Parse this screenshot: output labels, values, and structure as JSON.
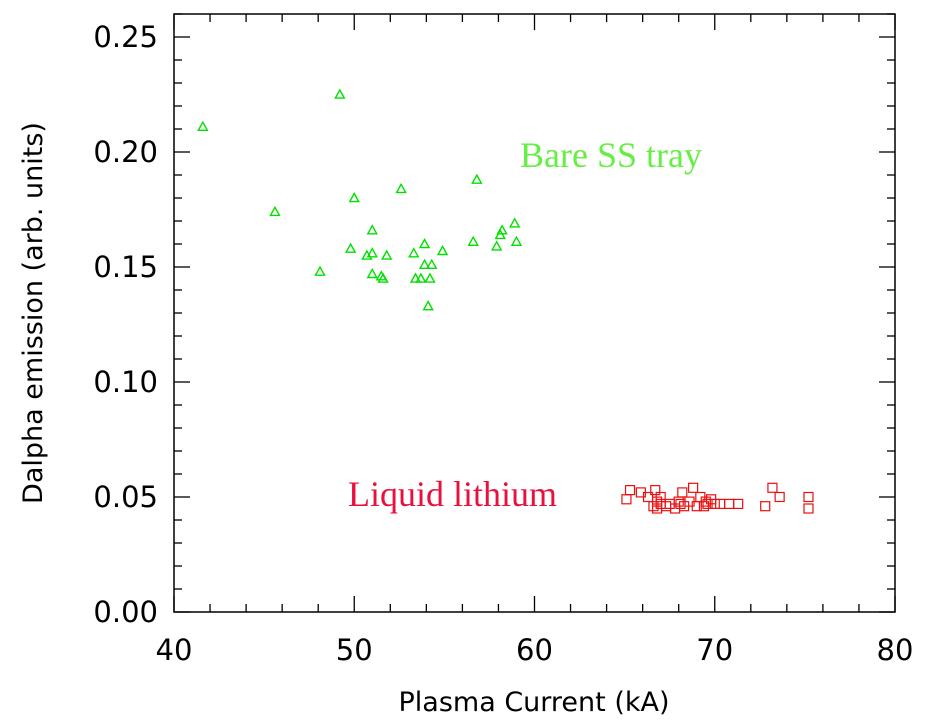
{
  "chart_data": {
    "type": "scatter",
    "title": "",
    "xlabel": "Plasma Current (kA)",
    "ylabel": "Dalpha emission (arb. units)",
    "xlim": [
      40,
      80
    ],
    "ylim": [
      0,
      0.26
    ],
    "xticks": [
      "40",
      "50",
      "60",
      "70",
      "80"
    ],
    "yticks": [
      "0.00",
      "0.05",
      "0.10",
      "0.15",
      "0.20",
      "0.25"
    ],
    "grid": false,
    "series": [
      {
        "name": "Bare SS tray",
        "color": "#00e000",
        "marker": "triangle",
        "points": [
          [
            41.6,
            0.211
          ],
          [
            45.6,
            0.174
          ],
          [
            48.1,
            0.148
          ],
          [
            49.2,
            0.225
          ],
          [
            49.8,
            0.158
          ],
          [
            50.0,
            0.18
          ],
          [
            50.7,
            0.155
          ],
          [
            51.0,
            0.166
          ],
          [
            51.0,
            0.156
          ],
          [
            51.0,
            0.147
          ],
          [
            51.5,
            0.146
          ],
          [
            51.6,
            0.145
          ],
          [
            51.8,
            0.155
          ],
          [
            52.6,
            0.184
          ],
          [
            53.3,
            0.156
          ],
          [
            53.4,
            0.145
          ],
          [
            53.7,
            0.145
          ],
          [
            53.9,
            0.16
          ],
          [
            53.9,
            0.151
          ],
          [
            54.1,
            0.133
          ],
          [
            54.2,
            0.145
          ],
          [
            54.3,
            0.151
          ],
          [
            54.9,
            0.157
          ],
          [
            56.6,
            0.161
          ],
          [
            56.8,
            0.188
          ],
          [
            57.9,
            0.159
          ],
          [
            58.1,
            0.164
          ],
          [
            58.2,
            0.166
          ],
          [
            58.9,
            0.169
          ],
          [
            59.0,
            0.161
          ]
        ]
      },
      {
        "name": "Liquid lithium",
        "color": "#e81010",
        "marker": "square",
        "points": [
          [
            65.1,
            0.049
          ],
          [
            65.3,
            0.053
          ],
          [
            65.9,
            0.052
          ],
          [
            66.3,
            0.05
          ],
          [
            66.6,
            0.046
          ],
          [
            66.7,
            0.053
          ],
          [
            66.8,
            0.045
          ],
          [
            66.8,
            0.048
          ],
          [
            67.0,
            0.05
          ],
          [
            67.0,
            0.047
          ],
          [
            67.3,
            0.046
          ],
          [
            67.5,
            0.047
          ],
          [
            67.8,
            0.045
          ],
          [
            68.0,
            0.048
          ],
          [
            68.1,
            0.047
          ],
          [
            68.2,
            0.052
          ],
          [
            68.3,
            0.046
          ],
          [
            68.6,
            0.048
          ],
          [
            68.8,
            0.054
          ],
          [
            69.0,
            0.046
          ],
          [
            69.2,
            0.05
          ],
          [
            69.4,
            0.046
          ],
          [
            69.5,
            0.048
          ],
          [
            69.6,
            0.047
          ],
          [
            69.8,
            0.049
          ],
          [
            70.0,
            0.047
          ],
          [
            70.3,
            0.047
          ],
          [
            70.8,
            0.047
          ],
          [
            71.3,
            0.047
          ],
          [
            72.8,
            0.046
          ],
          [
            73.2,
            0.054
          ],
          [
            73.6,
            0.05
          ],
          [
            75.2,
            0.05
          ],
          [
            75.2,
            0.045
          ]
        ]
      }
    ]
  }
}
